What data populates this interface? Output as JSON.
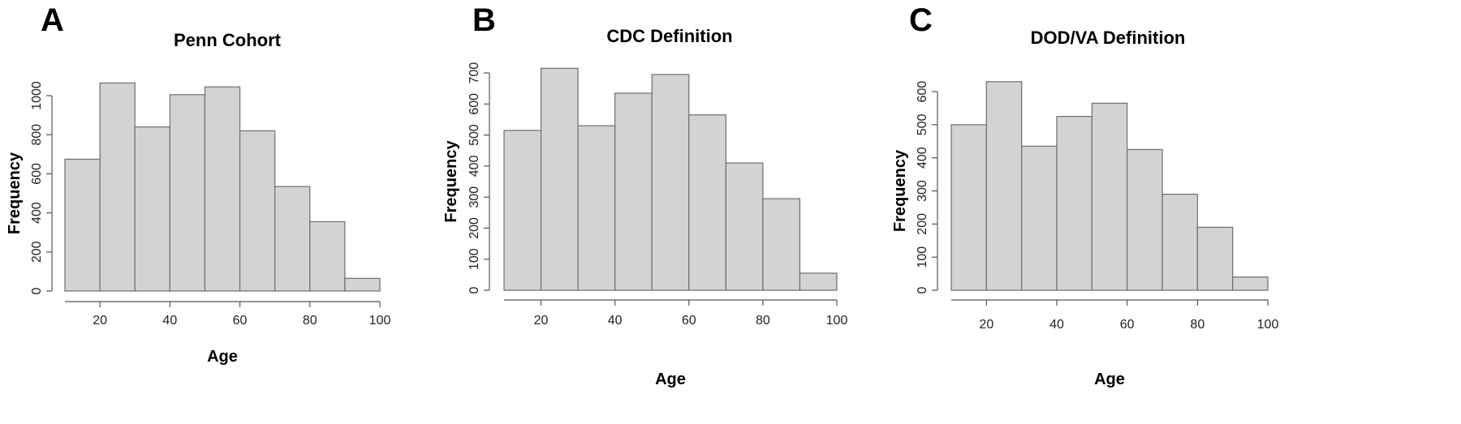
{
  "chart_data": [
    {
      "type": "bar",
      "panel_letter": "A",
      "title": "Penn Cohort",
      "xlabel": "Age",
      "ylabel": "Frequency",
      "bin_edges": [
        10,
        20,
        30,
        40,
        50,
        60,
        70,
        80,
        90,
        100
      ],
      "values": [
        675,
        1065,
        840,
        1005,
        1045,
        820,
        535,
        355,
        65
      ],
      "xticks": [
        20,
        40,
        60,
        80,
        100
      ],
      "yticks": [
        0,
        200,
        400,
        600,
        800,
        1000
      ],
      "xlim": [
        10,
        100
      ],
      "ylim": [
        0,
        1000
      ],
      "grid": false
    },
    {
      "type": "bar",
      "panel_letter": "B",
      "title": "CDC Definition",
      "xlabel": "Age",
      "ylabel": "Frequency",
      "bin_edges": [
        10,
        20,
        30,
        40,
        50,
        60,
        70,
        80,
        90,
        100
      ],
      "values": [
        515,
        715,
        530,
        635,
        695,
        565,
        410,
        295,
        55
      ],
      "xticks": [
        20,
        40,
        60,
        80,
        100
      ],
      "yticks": [
        0,
        100,
        200,
        300,
        400,
        500,
        600,
        700
      ],
      "xlim": [
        10,
        100
      ],
      "ylim": [
        0,
        700
      ],
      "grid": false
    },
    {
      "type": "bar",
      "panel_letter": "C",
      "title": "DOD/VA Definition",
      "xlabel": "Age",
      "ylabel": "Frequency",
      "bin_edges": [
        10,
        20,
        30,
        40,
        50,
        60,
        70,
        80,
        90,
        100
      ],
      "values": [
        500,
        630,
        435,
        525,
        565,
        425,
        290,
        190,
        40
      ],
      "xticks": [
        20,
        40,
        60,
        80,
        100
      ],
      "yticks": [
        0,
        100,
        200,
        300,
        400,
        500,
        600
      ],
      "xlim": [
        10,
        100
      ],
      "ylim": [
        0,
        600
      ],
      "grid": false
    }
  ]
}
